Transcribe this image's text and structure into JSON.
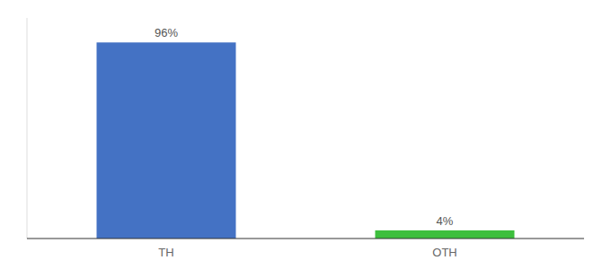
{
  "chart_data": {
    "type": "bar",
    "categories": [
      "TH",
      "OTH"
    ],
    "values": [
      96,
      4
    ],
    "value_labels": [
      "96%",
      "4%"
    ],
    "colors": [
      "#4472c4",
      "#3dbf3d"
    ],
    "ylim": [
      0,
      108
    ],
    "data_labels": true,
    "tick_labels": "x"
  }
}
